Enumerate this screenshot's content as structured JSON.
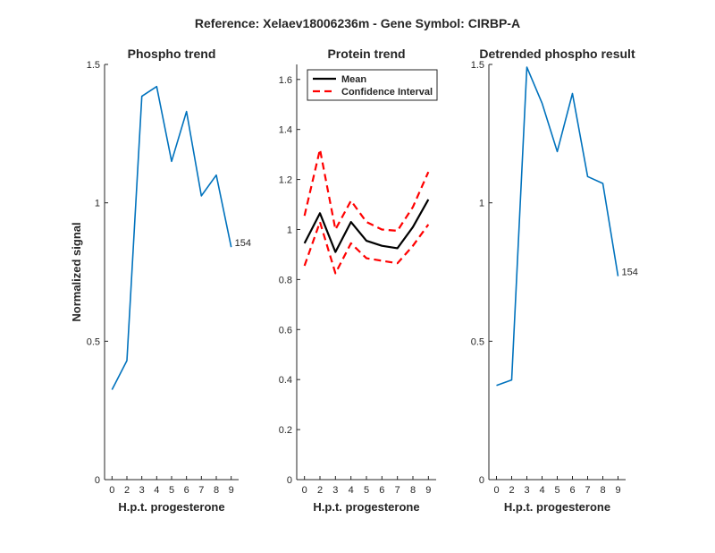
{
  "suptitle": "Reference:  Xelaev18006236m - Gene Symbol:  CIRBP-A",
  "chart_data": [
    {
      "type": "line",
      "title": "Phospho trend",
      "xlabel": "H.p.t. progesterone",
      "ylabel": "Normalized signal",
      "categories": [
        "0",
        "2",
        "3",
        "4",
        "5",
        "6",
        "7",
        "8",
        "9"
      ],
      "xlim": [
        0.5,
        9.5
      ],
      "ylim": [
        0,
        1.5
      ],
      "yticks": [
        0,
        0.5,
        1,
        1.5
      ],
      "ytick_labels": [
        "0",
        "0.5",
        "1",
        "1.5"
      ],
      "series": [
        {
          "name": "Phospho",
          "color": "#0072bd",
          "style": "solid",
          "values": [
            0.325,
            0.43,
            1.385,
            1.42,
            1.15,
            1.33,
            1.025,
            1.1,
            0.84
          ]
        }
      ],
      "annotation": {
        "text": "154",
        "index": 8
      }
    },
    {
      "type": "line",
      "title": "Protein trend",
      "xlabel": "H.p.t. progesterone",
      "ylabel": "",
      "categories": [
        "0",
        "2",
        "3",
        "4",
        "5",
        "6",
        "7",
        "8",
        "9"
      ],
      "xlim": [
        0.5,
        9.5
      ],
      "ylim": [
        0,
        1.66
      ],
      "yticks": [
        0,
        0.2,
        0.4,
        0.6,
        0.8,
        1,
        1.2,
        1.4,
        1.6
      ],
      "ytick_labels": [
        "0",
        "0.2",
        "0.4",
        "0.6",
        "0.8",
        "1",
        "1.2",
        "1.4",
        "1.6"
      ],
      "legend": {
        "position": "top-left",
        "entries": [
          {
            "label": "Mean"
          },
          {
            "label": "Confidence Interval"
          }
        ]
      },
      "series": [
        {
          "name": "Mean",
          "color": "#000000",
          "style": "solid",
          "values": [
            0.945,
            1.065,
            0.91,
            1.03,
            0.955,
            0.935,
            0.925,
            1.01,
            1.12
          ]
        },
        {
          "name": "Confidence Interval upper",
          "color": "#ff0000",
          "style": "dashed",
          "values": [
            1.055,
            1.32,
            1.0,
            1.115,
            1.03,
            1.0,
            0.995,
            1.09,
            1.23
          ]
        },
        {
          "name": "Confidence Interval lower",
          "color": "#ff0000",
          "style": "dashed",
          "values": [
            0.855,
            1.03,
            0.825,
            0.945,
            0.885,
            0.875,
            0.865,
            0.935,
            1.02
          ]
        }
      ]
    },
    {
      "type": "line",
      "title": "Detrended phospho result",
      "xlabel": "H.p.t. progesterone",
      "ylabel": "",
      "categories": [
        "0",
        "2",
        "3",
        "4",
        "5",
        "6",
        "7",
        "8",
        "9"
      ],
      "xlim": [
        0.5,
        9.5
      ],
      "ylim": [
        0,
        1.5
      ],
      "yticks": [
        0,
        0.5,
        1,
        1.5
      ],
      "ytick_labels": [
        "0",
        "0.5",
        "1",
        "1.5"
      ],
      "series": [
        {
          "name": "Detrended",
          "color": "#0072bd",
          "style": "solid",
          "values": [
            0.34,
            0.36,
            1.49,
            1.36,
            1.185,
            1.395,
            1.095,
            1.07,
            0.735
          ]
        }
      ],
      "annotation": {
        "text": "154",
        "index": 8
      }
    }
  ]
}
